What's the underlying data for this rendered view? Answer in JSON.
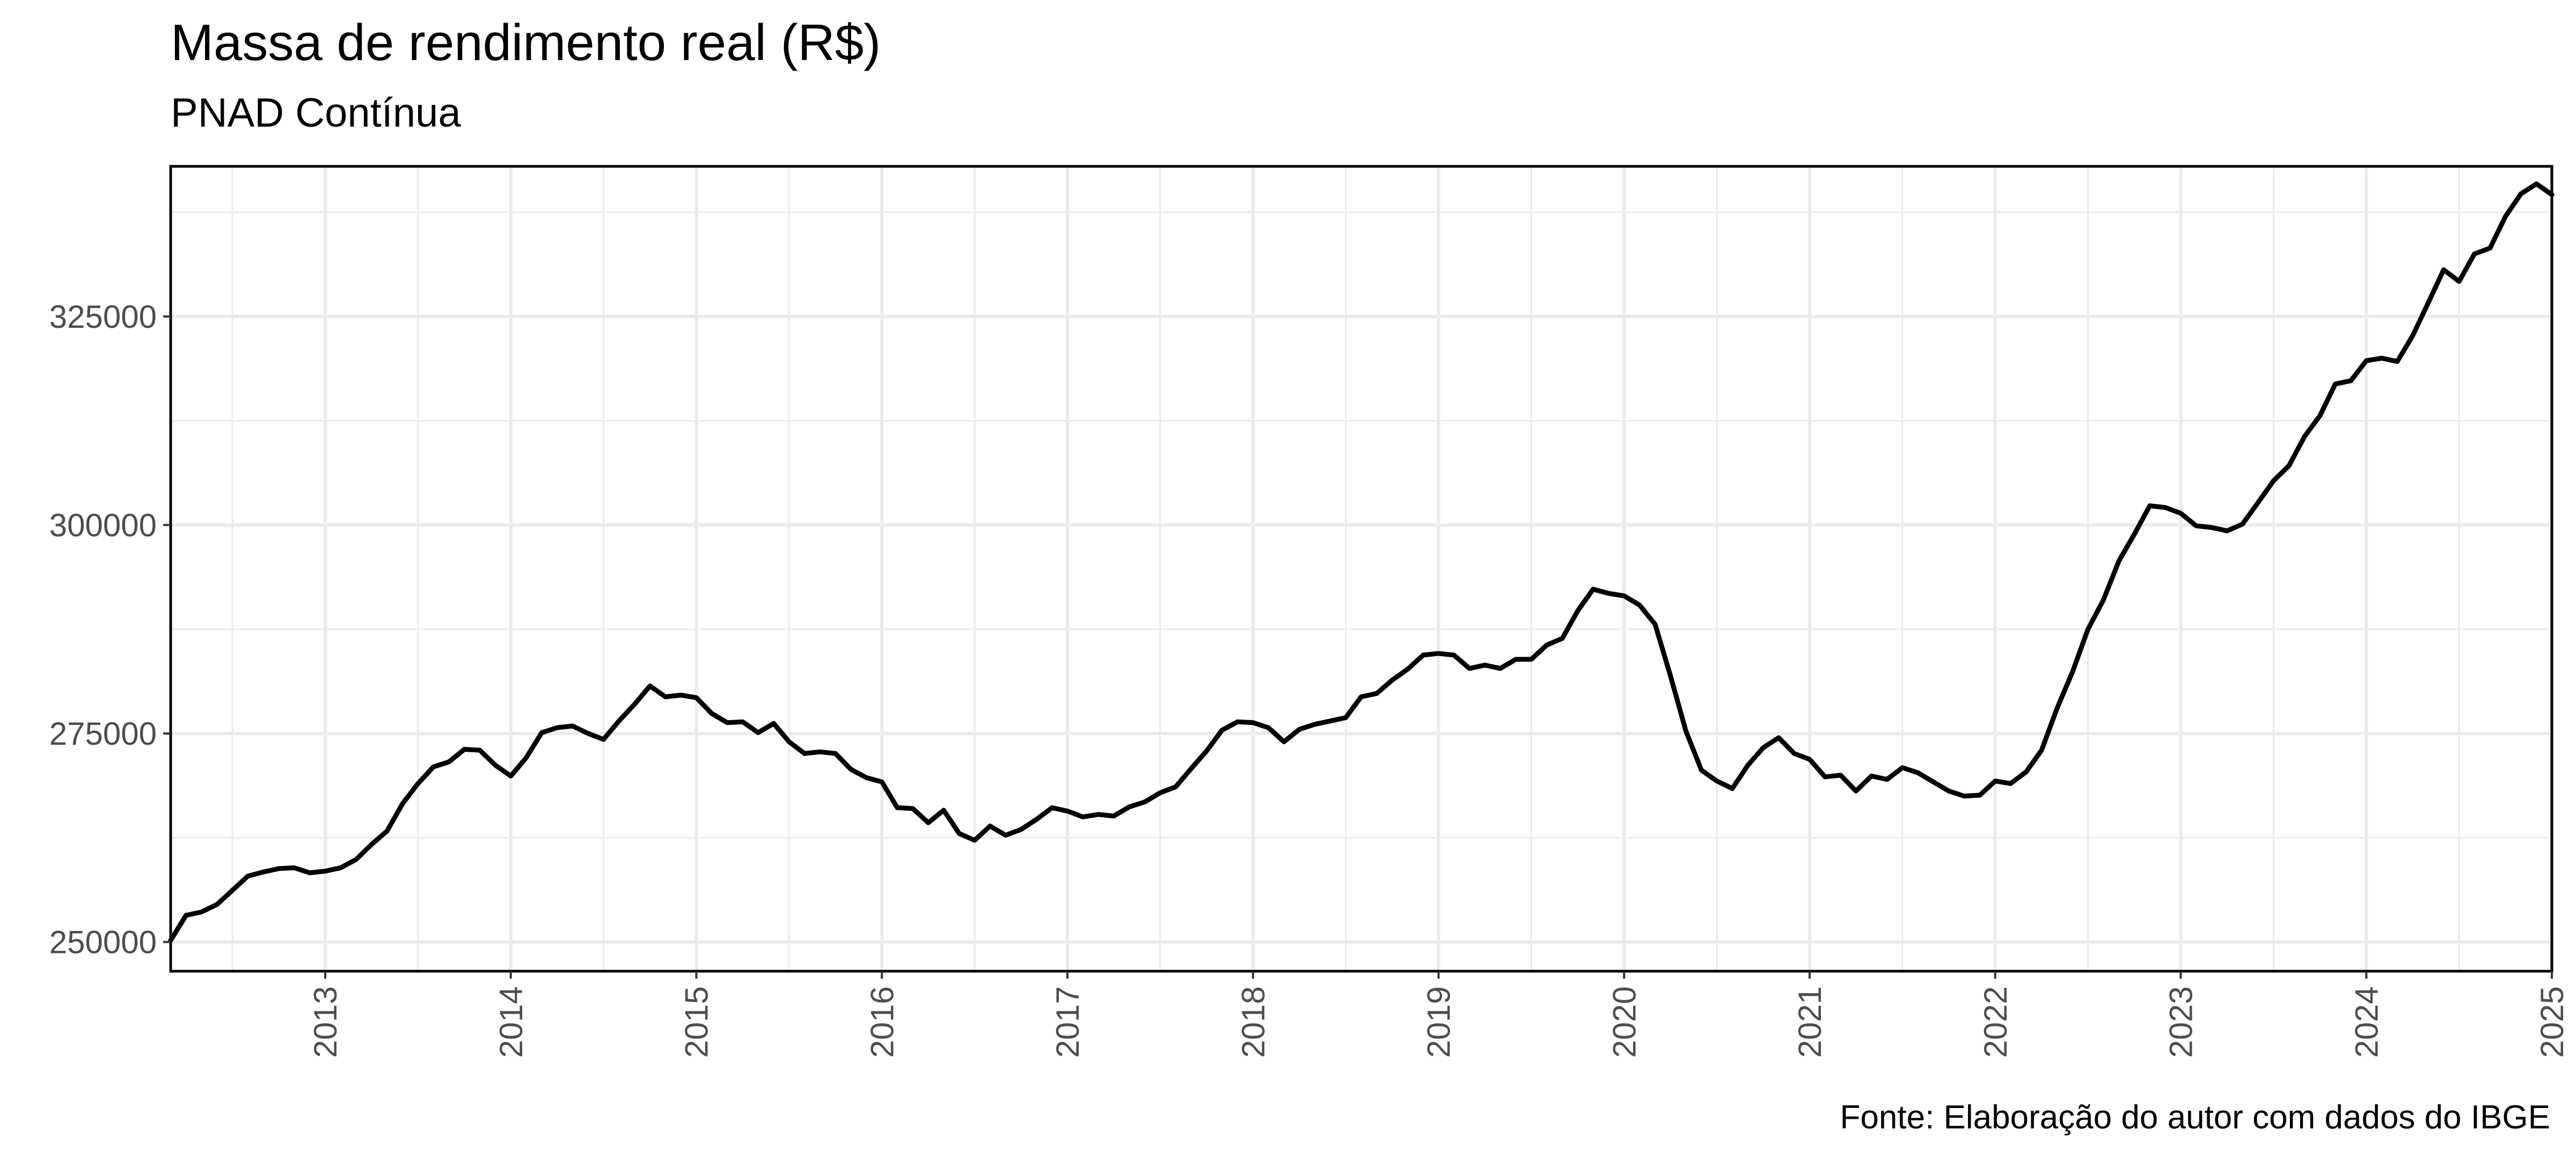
{
  "chart_data": {
    "type": "line",
    "title": "Massa de rendimento real (R$)",
    "subtitle": "PNAD Contínua",
    "caption": "Fonte: Elaboração do autor com dados do IBGE",
    "xlabel": "",
    "ylabel": "",
    "xlim": [
      2012.167,
      2025.0
    ],
    "ylim": [
      246500,
      343000
    ],
    "x_ticks": [
      "2013",
      "2014",
      "2015",
      "2016",
      "2017",
      "2018",
      "2019",
      "2020",
      "2021",
      "2022",
      "2023",
      "2024",
      "2025"
    ],
    "y_ticks": [
      "250000",
      "275000",
      "300000",
      "325000"
    ],
    "grid": true,
    "legend": "none",
    "colors": {
      "line": "#000000",
      "grid": "#ebebeb",
      "panel_border": "#000000"
    },
    "series": [
      {
        "x": [
          2012.167,
          2012.25,
          2012.333,
          2012.417,
          2012.5,
          2012.583,
          2012.667,
          2012.75,
          2012.833,
          2012.917,
          2013.0,
          2013.083,
          2013.167,
          2013.25,
          2013.333,
          2013.417,
          2013.5,
          2013.583,
          2013.667,
          2013.75,
          2013.833,
          2013.917,
          2014.0,
          2014.083,
          2014.167,
          2014.25,
          2014.333,
          2014.417,
          2014.5,
          2014.583,
          2014.667,
          2014.75,
          2014.833,
          2014.917,
          2015.0,
          2015.083,
          2015.167,
          2015.25,
          2015.333,
          2015.417,
          2015.5,
          2015.583,
          2015.667,
          2015.75,
          2015.833,
          2015.917,
          2016.0,
          2016.083,
          2016.167,
          2016.25,
          2016.333,
          2016.417,
          2016.5,
          2016.583,
          2016.667,
          2016.75,
          2016.833,
          2016.917,
          2017.0,
          2017.083,
          2017.167,
          2017.25,
          2017.333,
          2017.417,
          2017.5,
          2017.583,
          2017.667,
          2017.75,
          2017.833,
          2017.917,
          2018.0,
          2018.083,
          2018.167,
          2018.25,
          2018.333,
          2018.417,
          2018.5,
          2018.583,
          2018.667,
          2018.75,
          2018.833,
          2018.917,
          2019.0,
          2019.083,
          2019.167,
          2019.25,
          2019.333,
          2019.417,
          2019.5,
          2019.583,
          2019.667,
          2019.75,
          2019.833,
          2019.917,
          2020.0,
          2020.083,
          2020.167,
          2020.25,
          2020.333,
          2020.417,
          2020.5,
          2020.583,
          2020.667,
          2020.75,
          2020.833,
          2020.917,
          2021.0,
          2021.083,
          2021.167,
          2021.25,
          2021.333,
          2021.417,
          2021.5,
          2021.583,
          2021.667,
          2021.75,
          2021.833,
          2021.917,
          2022.0,
          2022.083,
          2022.167,
          2022.25,
          2022.333,
          2022.417,
          2022.5,
          2022.583,
          2022.667,
          2022.75,
          2022.833,
          2022.917,
          2023.0,
          2023.083,
          2023.167,
          2023.25,
          2023.333,
          2023.417,
          2023.5,
          2023.583,
          2023.667,
          2023.75,
          2023.833,
          2023.917,
          2024.0,
          2024.083,
          2024.167,
          2024.25,
          2024.333,
          2024.417,
          2024.5,
          2024.583,
          2024.667,
          2024.75,
          2024.833,
          2024.917,
          2025.0
        ],
        "values": [
          250200,
          253200,
          253600,
          254500,
          256200,
          257900,
          258400,
          258800,
          258900,
          258300,
          258500,
          258900,
          259900,
          261700,
          263300,
          266600,
          269000,
          271000,
          271600,
          273100,
          273000,
          271200,
          269900,
          272100,
          275100,
          275700,
          275900,
          275000,
          274300,
          276500,
          278500,
          280700,
          279400,
          279600,
          279300,
          277400,
          276300,
          276400,
          275100,
          276200,
          274000,
          272600,
          272800,
          272600,
          270700,
          269700,
          269200,
          266100,
          266000,
          264300,
          265800,
          263000,
          262200,
          263900,
          262800,
          263500,
          264700,
          266100,
          265700,
          265000,
          265300,
          265100,
          266200,
          266800,
          267900,
          268600,
          270800,
          272900,
          275400,
          276400,
          276300,
          275700,
          274000,
          275500,
          276100,
          276500,
          276900,
          279400,
          279800,
          281400,
          282700,
          284400,
          284600,
          284400,
          282800,
          283200,
          282800,
          283900,
          283900,
          285600,
          286400,
          289700,
          292300,
          291800,
          291500,
          290400,
          288100,
          281900,
          275300,
          270600,
          269300,
          268400,
          271200,
          273300,
          274500,
          272600,
          271900,
          269800,
          270000,
          268100,
          269900,
          269500,
          270900,
          270300,
          269200,
          268100,
          267500,
          267600,
          269300,
          269000,
          270400,
          273000,
          278000,
          282400,
          287500,
          291000,
          295700,
          298900,
          302300,
          302100,
          301400,
          299900,
          299700,
          299300,
          300100,
          302700,
          305300,
          307100,
          310600,
          313100,
          316900,
          317300,
          319700,
          320000,
          319600,
          322700,
          326600,
          330600,
          329200,
          332500,
          333200,
          337000,
          339700,
          340900,
          339600
        ]
      }
    ]
  }
}
